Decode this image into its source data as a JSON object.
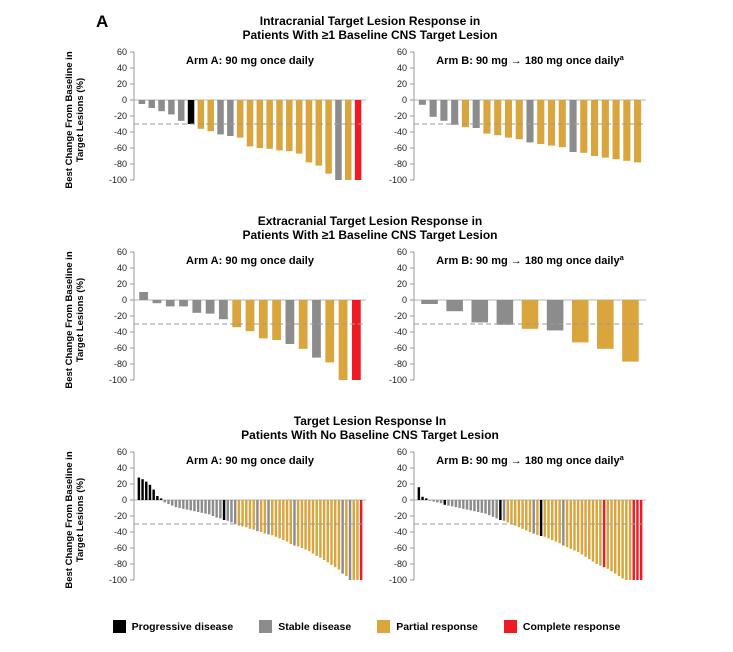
{
  "figure_label": "A",
  "y_axis": {
    "label_line1": "Best Change From Baseline in",
    "label_line2": "Target Lesions (%)",
    "ticks": [
      60,
      40,
      20,
      0,
      -20,
      -40,
      -60,
      -80,
      -100
    ],
    "range": [
      -100,
      60
    ],
    "reference_line": -30
  },
  "rows": [
    {
      "title_line1": "Intracranial Target Lesion Response in",
      "title_line2": "Patients With ≥1 Baseline CNS Target Lesion"
    },
    {
      "title_line1": "Extracranial Target Lesion Response in",
      "title_line2": "Patients With ≥1 Baseline CNS Target Lesion"
    },
    {
      "title_line1": "Target Lesion Response In",
      "title_line2": "Patients With No Baseline CNS Target Lesion"
    }
  ],
  "legend": [
    {
      "key": "PD",
      "label": "Progressive disease",
      "color": "#000000"
    },
    {
      "key": "SD",
      "label": "Stable disease",
      "color": "#8C8C8C"
    },
    {
      "key": "PR",
      "label": "Partial response",
      "color": "#D9A53C"
    },
    {
      "key": "CR",
      "label": "Complete response",
      "color": "#ED1C24"
    }
  ],
  "chart_data": [
    {
      "type": "bar",
      "group": "intracranial-cns-target-lesion",
      "arm_label": "Arm A: 90 mg once daily",
      "superscript": "",
      "ylabel": "Best Change From Baseline in Target Lesions (%)",
      "ylim": [
        -100,
        60
      ],
      "values": [
        -5,
        -10,
        -14,
        -18,
        -26,
        -30,
        -36,
        -39,
        -43,
        -45,
        -47,
        -58,
        -60,
        -61,
        -63,
        -64,
        -67,
        -78,
        -82,
        -92,
        -100,
        -100,
        -100
      ],
      "colors": [
        "SD",
        "SD",
        "SD",
        "SD",
        "SD",
        "PD",
        "PR",
        "PR",
        "SD",
        "SD",
        "PR",
        "PR",
        "PR",
        "PR",
        "PR",
        "PR",
        "PR",
        "PR",
        "PR",
        "PR",
        "SD",
        "PR",
        "CR"
      ]
    },
    {
      "type": "bar",
      "group": "intracranial-cns-target-lesion",
      "arm_label": "Arm B: 90 mg → 180 mg once daily",
      "superscript": "a",
      "ylabel": "Best Change From Baseline in Target Lesions (%)",
      "ylim": [
        -100,
        60
      ],
      "values": [
        -6,
        -21,
        -26,
        -31,
        -34,
        -35,
        -42,
        -44,
        -47,
        -49,
        -53,
        -55,
        -57,
        -59,
        -65,
        -66,
        -70,
        -72,
        -74,
        -76,
        -78
      ],
      "colors": [
        "SD",
        "SD",
        "SD",
        "SD",
        "PR",
        "SD",
        "PR",
        "PR",
        "PR",
        "PR",
        "SD",
        "PR",
        "PR",
        "PR",
        "SD",
        "PR",
        "PR",
        "PR",
        "PR",
        "PR",
        "PR"
      ]
    },
    {
      "type": "bar",
      "group": "extracranial-cns-target-lesion",
      "arm_label": "Arm A: 90 mg once daily",
      "superscript": "",
      "ylabel": "Best Change From Baseline in Target Lesions (%)",
      "ylim": [
        -100,
        60
      ],
      "values": [
        10,
        -4,
        -8,
        -8,
        -16,
        -17,
        -24,
        -34,
        -39,
        -48,
        -50,
        -55,
        -61,
        -72,
        -78,
        -100,
        -100
      ],
      "colors": [
        "SD",
        "SD",
        "SD",
        "SD",
        "SD",
        "SD",
        "SD",
        "PR",
        "PR",
        "PR",
        "PR",
        "SD",
        "PR",
        "SD",
        "PR",
        "PR",
        "CR"
      ]
    },
    {
      "type": "bar",
      "group": "extracranial-cns-target-lesion",
      "arm_label": "Arm B: 90 mg → 180 mg once daily",
      "superscript": "a",
      "ylabel": "Best Change From Baseline in Target Lesions (%)",
      "ylim": [
        -100,
        60
      ],
      "values": [
        -5,
        -14,
        -28,
        -31,
        -36,
        -38,
        -53,
        -61,
        -77
      ],
      "colors": [
        "SD",
        "SD",
        "SD",
        "SD",
        "PR",
        "SD",
        "PR",
        "PR",
        "PR"
      ]
    },
    {
      "type": "bar",
      "group": "no-baseline-cns-target-lesion",
      "arm_label": "Arm A: 90 mg once daily",
      "superscript": "",
      "ylabel": "Best Change From Baseline in Target Lesions (%)",
      "ylim": [
        -100,
        60
      ],
      "values": [
        28,
        26,
        23,
        19,
        13,
        5,
        2,
        -3,
        -5,
        -7,
        -9,
        -10,
        -11,
        -12,
        -13,
        -14,
        -15,
        -16,
        -17,
        -18,
        -20,
        -22,
        -23,
        -25,
        -26,
        -28,
        -30,
        -32,
        -33,
        -34,
        -36,
        -37,
        -39,
        -40,
        -42,
        -43,
        -44,
        -46,
        -48,
        -50,
        -52,
        -55,
        -57,
        -58,
        -60,
        -62,
        -64,
        -67,
        -70,
        -72,
        -75,
        -78,
        -81,
        -84,
        -87,
        -92,
        -95,
        -100,
        -100,
        -100,
        -100
      ],
      "colors": [
        "PD",
        "PD",
        "PD",
        "PD",
        "PD",
        "PD",
        "PD",
        "SD",
        "SD",
        "SD",
        "SD",
        "SD",
        "SD",
        "SD",
        "SD",
        "SD",
        "SD",
        "SD",
        "SD",
        "SD",
        "SD",
        "SD",
        "SD",
        "PD",
        "SD",
        "SD",
        "SD",
        "PR",
        "PR",
        "PR",
        "PR",
        "PR",
        "SD",
        "PR",
        "PR",
        "SD",
        "PR",
        "PR",
        "PR",
        "PR",
        "PR",
        "PR",
        "SD",
        "PR",
        "PR",
        "PR",
        "PR",
        "PR",
        "PR",
        "PR",
        "PR",
        "PR",
        "PR",
        "PR",
        "PR",
        "SD",
        "PR",
        "SD",
        "PR",
        "PR",
        "CR"
      ]
    },
    {
      "type": "bar",
      "group": "no-baseline-cns-target-lesion",
      "arm_label": "Arm B: 90 mg → 180 mg once daily",
      "superscript": "a",
      "ylabel": "Best Change From Baseline in Target Lesions (%)",
      "ylim": [
        -100,
        60
      ],
      "values": [
        16,
        4,
        2,
        -1,
        -2,
        -3,
        -4,
        -6,
        -7,
        -8,
        -9,
        -10,
        -11,
        -12,
        -13,
        -14,
        -15,
        -16,
        -17,
        -19,
        -21,
        -23,
        -25,
        -26,
        -28,
        -30,
        -32,
        -34,
        -36,
        -38,
        -40,
        -42,
        -44,
        -45,
        -46,
        -48,
        -50,
        -52,
        -54,
        -57,
        -59,
        -61,
        -63,
        -65,
        -68,
        -71,
        -74,
        -77,
        -80,
        -82,
        -84,
        -86,
        -89,
        -92,
        -95,
        -98,
        -100,
        -100,
        -100,
        -100,
        -100
      ],
      "colors": [
        "PD",
        "PD",
        "PD",
        "SD",
        "SD",
        "SD",
        "SD",
        "PD",
        "SD",
        "SD",
        "SD",
        "SD",
        "SD",
        "SD",
        "SD",
        "SD",
        "SD",
        "SD",
        "SD",
        "SD",
        "SD",
        "SD",
        "PD",
        "SD",
        "PR",
        "PR",
        "PR",
        "PR",
        "PR",
        "PR",
        "PR",
        "SD",
        "PR",
        "PD",
        "PR",
        "PR",
        "PR",
        "PR",
        "PR",
        "SD",
        "PR",
        "PR",
        "PR",
        "PR",
        "PR",
        "PR",
        "PR",
        "PR",
        "PR",
        "PR",
        "CR",
        "PR",
        "PR",
        "PR",
        "PR",
        "PR",
        "PR",
        "PR",
        "CR",
        "CR",
        "CR"
      ]
    }
  ]
}
